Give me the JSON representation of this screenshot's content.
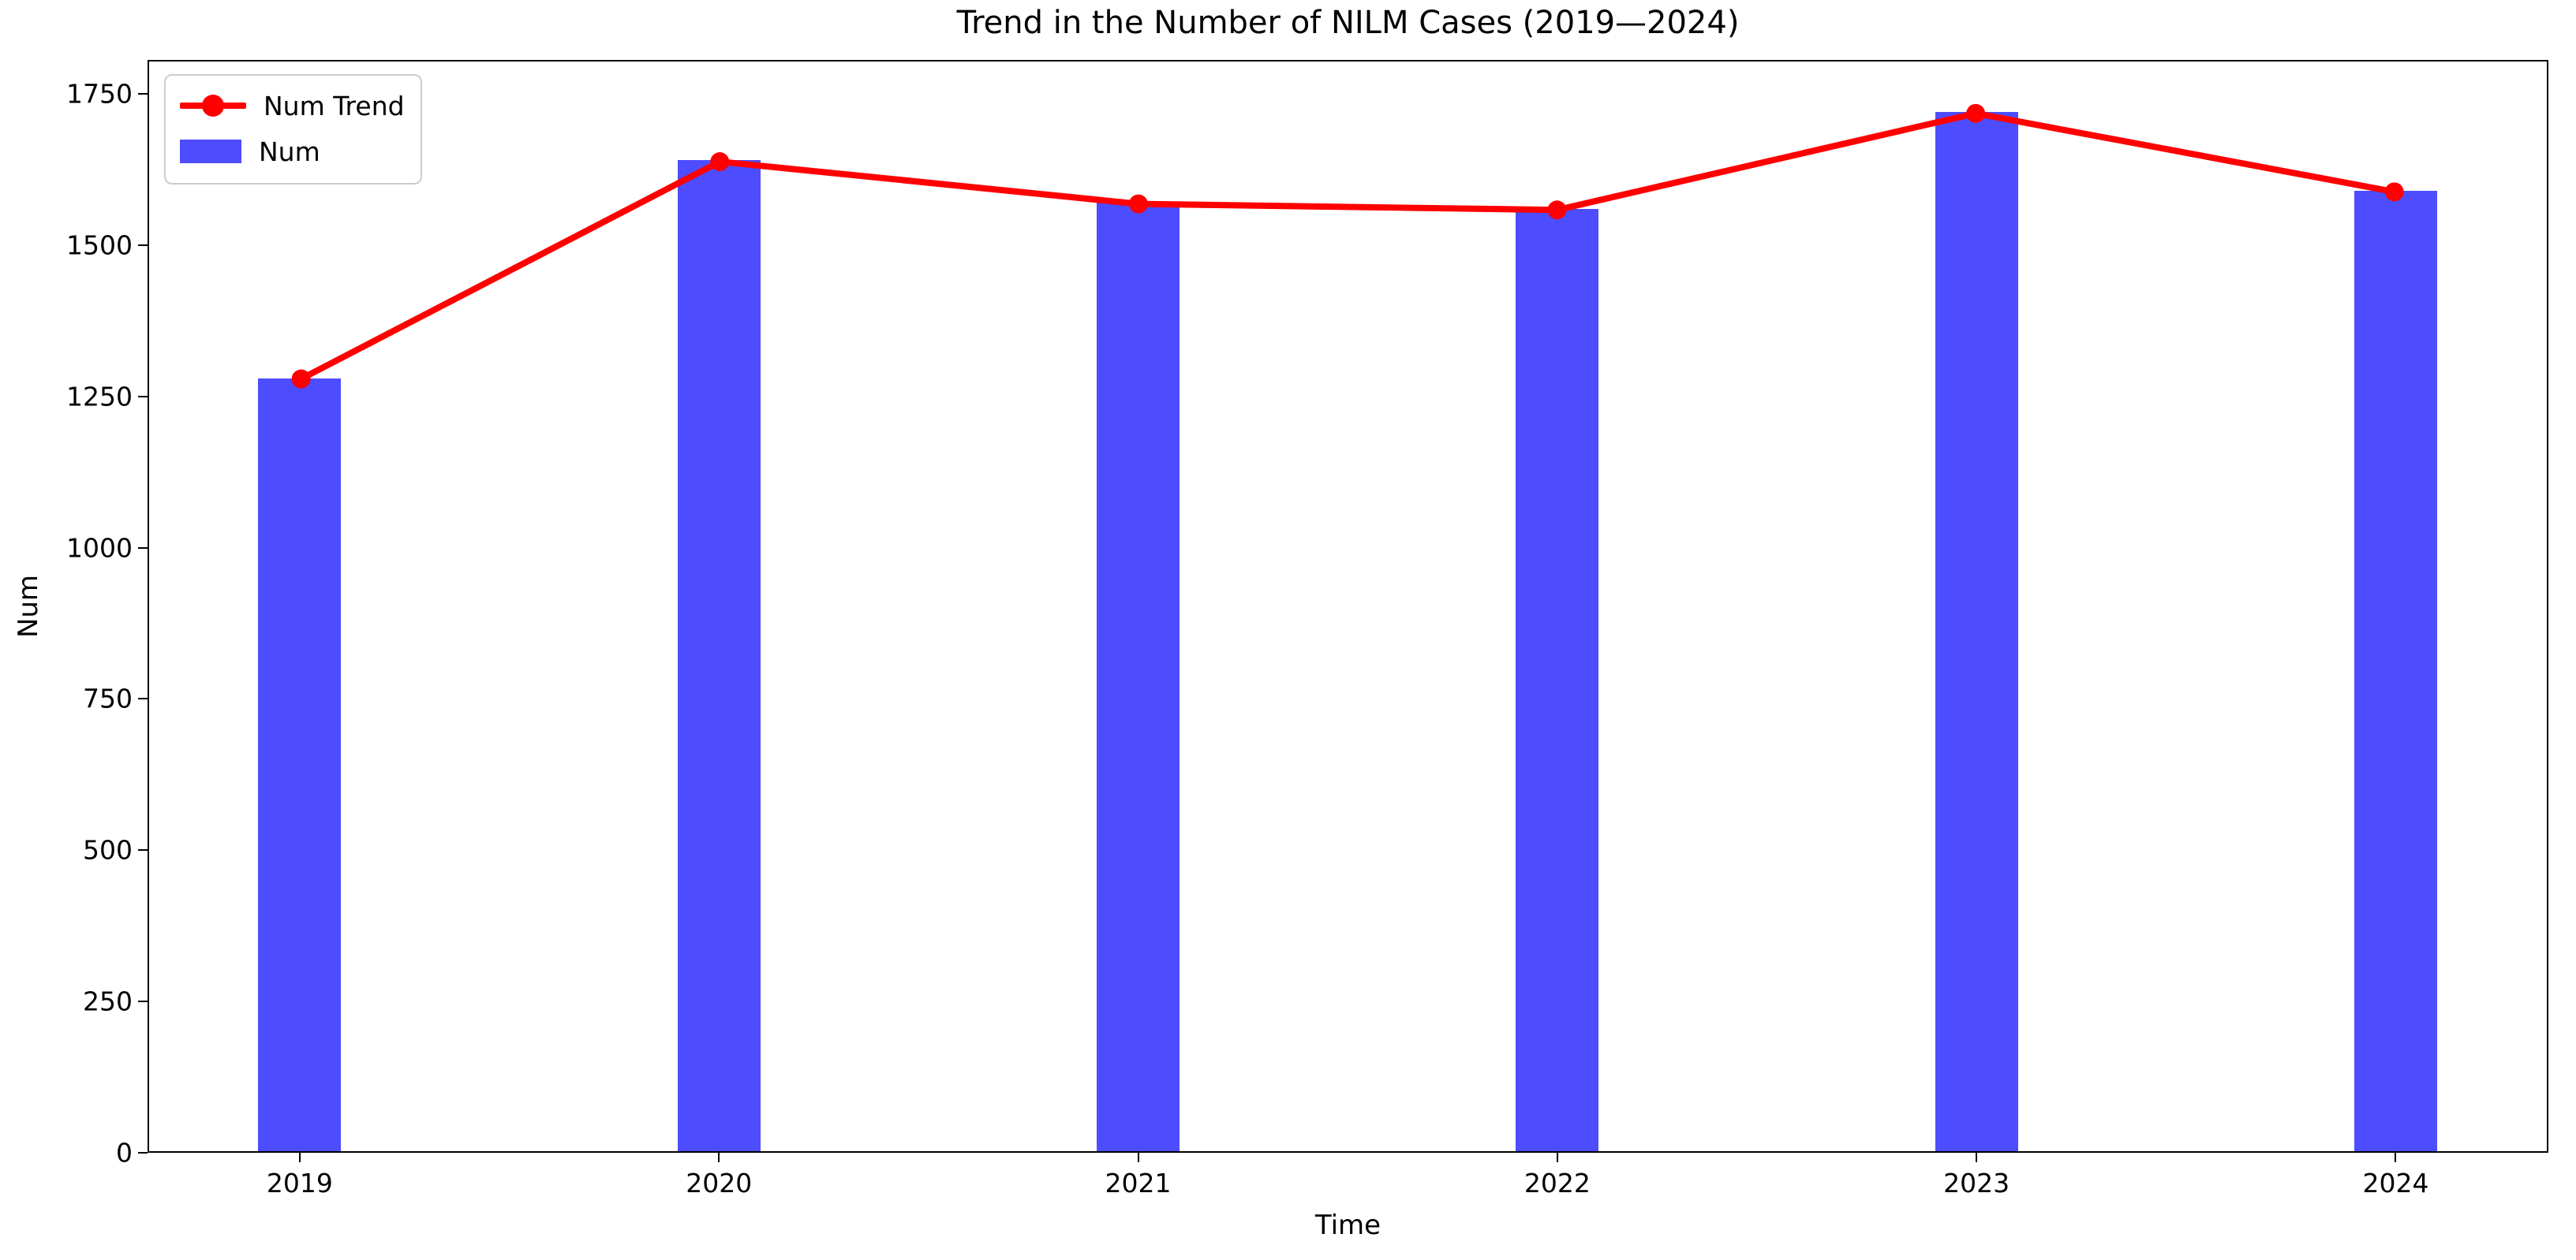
{
  "chart_data": {
    "type": "bar",
    "title": "Trend in the Number of NILM Cases (2019—2024)",
    "xlabel": "Time",
    "ylabel": "Num",
    "categories": [
      "2019",
      "2020",
      "2021",
      "2022",
      "2023",
      "2024"
    ],
    "series": [
      {
        "name": "Num Trend",
        "type": "line",
        "color": "#ff0000",
        "values": [
          1280,
          1640,
          1570,
          1560,
          1720,
          1590
        ]
      },
      {
        "name": "Num",
        "type": "bar",
        "color": "#4d4dff",
        "values": [
          1280,
          1640,
          1570,
          1560,
          1720,
          1590
        ]
      }
    ],
    "ylim": [
      0,
      1806
    ],
    "yticks": [
      0,
      250,
      500,
      750,
      1000,
      1250,
      1500,
      1750
    ],
    "legend_position": "upper left",
    "grid": false,
    "axis_color": "#000000"
  }
}
